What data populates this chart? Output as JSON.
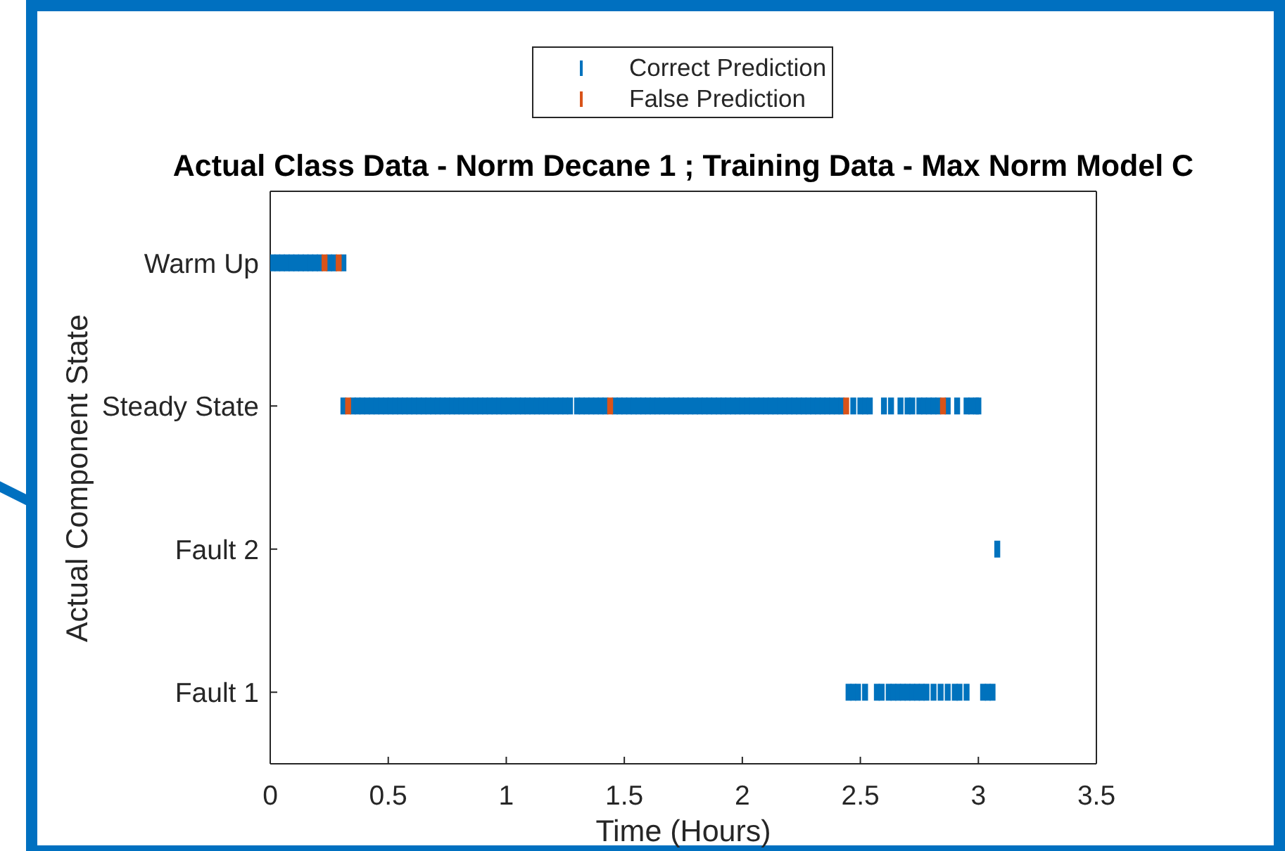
{
  "chart_data": {
    "type": "scatter",
    "title": "Actual Class Data - Norm Decane 1 ; Training Data - Max Norm Model C",
    "xlabel": "Time (Hours)",
    "ylabel": "Actual Component State",
    "orientation": "horizontal",
    "categories": [
      "Warm Up",
      "Steady State",
      "Fault 2",
      "Fault 1"
    ],
    "xlim": [
      0,
      3.5
    ],
    "xticks": [
      0,
      0.5,
      1,
      1.5,
      2,
      2.5,
      3,
      3.5
    ],
    "legend": "top",
    "series": [
      {
        "name": "Correct Prediction",
        "color": "#0072bd",
        "x": [
          "Warm Up",
          "Warm Up",
          "Warm Up",
          "Warm Up",
          "Warm Up",
          "Warm Up",
          "Warm Up",
          "Warm Up",
          "Warm Up",
          "Warm Up",
          "Warm Up",
          "Warm Up",
          "Warm Up",
          "Warm Up",
          "Steady State",
          "Steady State",
          "Steady State",
          "Steady State",
          "Steady State",
          "Steady State",
          "Steady State",
          "Steady State",
          "Steady State",
          "Steady State",
          "Steady State",
          "Steady State",
          "Steady State",
          "Steady State",
          "Steady State",
          "Steady State",
          "Steady State",
          "Steady State",
          "Steady State",
          "Steady State",
          "Steady State",
          "Steady State",
          "Steady State",
          "Steady State",
          "Steady State",
          "Steady State",
          "Steady State",
          "Steady State",
          "Steady State",
          "Steady State",
          "Steady State",
          "Steady State",
          "Steady State",
          "Steady State",
          "Steady State",
          "Steady State",
          "Steady State",
          "Steady State",
          "Steady State",
          "Steady State",
          "Steady State",
          "Steady State",
          "Steady State",
          "Steady State",
          "Steady State",
          "Steady State",
          "Steady State",
          "Steady State",
          "Steady State",
          "Steady State",
          "Steady State",
          "Steady State",
          "Steady State",
          "Steady State",
          "Steady State",
          "Steady State",
          "Steady State",
          "Steady State",
          "Steady State",
          "Steady State",
          "Steady State",
          "Steady State",
          "Steady State",
          "Steady State",
          "Steady State",
          "Steady State",
          "Steady State",
          "Steady State",
          "Steady State",
          "Steady State",
          "Steady State",
          "Steady State",
          "Steady State",
          "Steady State",
          "Steady State",
          "Steady State",
          "Steady State",
          "Steady State",
          "Steady State",
          "Steady State",
          "Steady State",
          "Steady State",
          "Steady State",
          "Steady State",
          "Steady State",
          "Steady State",
          "Steady State",
          "Steady State",
          "Steady State",
          "Steady State",
          "Steady State",
          "Steady State",
          "Steady State",
          "Steady State",
          "Steady State",
          "Steady State",
          "Steady State",
          "Steady State",
          "Steady State",
          "Steady State",
          "Steady State",
          "Steady State",
          "Steady State",
          "Steady State",
          "Steady State",
          "Steady State",
          "Steady State",
          "Steady State",
          "Steady State",
          "Steady State",
          "Steady State",
          "Steady State",
          "Steady State",
          "Steady State",
          "Steady State",
          "Steady State",
          "Steady State",
          "Steady State",
          "Steady State",
          "Steady State",
          "Steady State",
          "Steady State",
          "Steady State",
          "Steady State",
          "Fault 2",
          "Fault 1",
          "Fault 1",
          "Fault 1",
          "Fault 1",
          "Fault 1",
          "Fault 1",
          "Fault 1",
          "Fault 1",
          "Fault 1",
          "Fault 1",
          "Fault 1",
          "Fault 1",
          "Fault 1",
          "Fault 1",
          "Fault 1",
          "Fault 1",
          "Fault 1",
          "Fault 1",
          "Fault 1",
          "Fault 1",
          "Fault 1",
          "Fault 1",
          "Fault 1",
          "Fault 1"
        ],
        "values": [
          0.01,
          0.03,
          0.05,
          0.07,
          0.09,
          0.11,
          0.13,
          0.15,
          0.17,
          0.19,
          0.21,
          0.25,
          0.27,
          0.31,
          0.31,
          0.35,
          0.37,
          0.39,
          0.41,
          0.43,
          0.45,
          0.47,
          0.49,
          0.51,
          0.53,
          0.55,
          0.57,
          0.59,
          0.61,
          0.63,
          0.65,
          0.67,
          0.69,
          0.71,
          0.73,
          0.75,
          0.77,
          0.79,
          0.81,
          0.83,
          0.85,
          0.87,
          0.89,
          0.91,
          0.93,
          0.95,
          0.97,
          0.99,
          1.01,
          1.03,
          1.05,
          1.07,
          1.09,
          1.11,
          1.13,
          1.15,
          1.17,
          1.19,
          1.21,
          1.23,
          1.25,
          1.27,
          1.3,
          1.32,
          1.34,
          1.36,
          1.38,
          1.4,
          1.42,
          1.46,
          1.48,
          1.5,
          1.52,
          1.54,
          1.56,
          1.58,
          1.6,
          1.62,
          1.64,
          1.66,
          1.68,
          1.7,
          1.72,
          1.74,
          1.76,
          1.78,
          1.8,
          1.82,
          1.84,
          1.86,
          1.88,
          1.9,
          1.92,
          1.94,
          1.96,
          1.98,
          2,
          2.02,
          2.04,
          2.06,
          2.08,
          2.1,
          2.12,
          2.14,
          2.16,
          2.18,
          2.2,
          2.22,
          2.24,
          2.26,
          2.28,
          2.3,
          2.32,
          2.34,
          2.36,
          2.38,
          2.4,
          2.42,
          2.47,
          2.5,
          2.52,
          2.54,
          2.6,
          2.63,
          2.67,
          2.7,
          2.72,
          2.75,
          2.77,
          2.79,
          2.81,
          2.83,
          2.87,
          2.91,
          2.95,
          2.97,
          2.99,
          3,
          3.08,
          2.45,
          2.47,
          2.49,
          2.52,
          2.57,
          2.59,
          2.62,
          2.64,
          2.66,
          2.68,
          2.7,
          2.72,
          2.74,
          2.76,
          2.78,
          2.81,
          2.84,
          2.87,
          2.9,
          2.92,
          2.95,
          3.02,
          3.04,
          3.06
        ]
      },
      {
        "name": "False Prediction",
        "color": "#d95319",
        "x": [
          "Warm Up",
          "Warm Up",
          "Steady State",
          "Steady State",
          "Steady State",
          "Steady State"
        ],
        "values": [
          0.23,
          0.29,
          0.33,
          1.44,
          2.44,
          2.85
        ]
      }
    ]
  }
}
